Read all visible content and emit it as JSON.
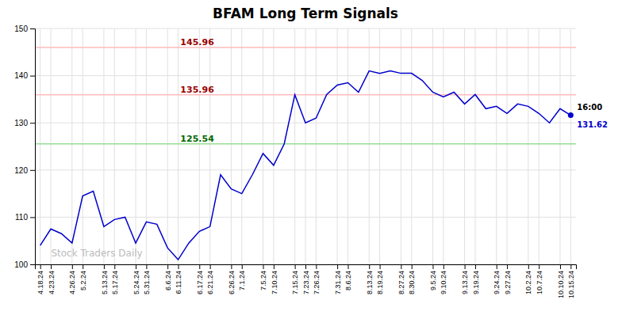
{
  "chart_data": {
    "type": "line",
    "title": "BFAM Long Term Signals",
    "categories": [
      "4.18.24",
      "4.23.24",
      null,
      "4.26.24",
      "5.2.24",
      null,
      "5.13.24",
      "5.17.24",
      null,
      "5.24.24",
      "5.31.24",
      null,
      "6.6.24",
      "6.11.24",
      null,
      "6.17.24",
      "6.21.24",
      null,
      "6.26.24",
      "7.1.24",
      null,
      "7.5.24",
      "7.10.24",
      null,
      "7.15.24",
      "7.23.24",
      "7.26.24",
      null,
      "7.31.24",
      "8.6.24",
      null,
      "8.13.24",
      "8.19.24",
      null,
      "8.27.24",
      "8.30.24",
      null,
      "9.5.24",
      "9.10.24",
      null,
      "9.13.24",
      "9.19.24",
      null,
      "9.24.24",
      "9.27.24",
      null,
      "10.2.24",
      "10.7.24",
      null,
      "10.10.24",
      "10.15.24"
    ],
    "values": [
      104.0,
      107.5,
      106.5,
      104.5,
      114.5,
      115.5,
      108.0,
      109.5,
      110.0,
      104.5,
      109.0,
      108.5,
      103.5,
      101.0,
      104.5,
      107.0,
      108.0,
      119.0,
      116.0,
      115.0,
      119.0,
      123.5,
      121.0,
      125.54,
      135.96,
      130.0,
      131.0,
      136.0,
      138.0,
      138.5,
      136.5,
      141.0,
      140.5,
      141.0,
      140.5,
      140.5,
      139.0,
      136.5,
      135.5,
      136.5,
      134.0,
      136.0,
      133.0,
      133.5,
      132.0,
      134.0,
      133.5,
      132.0,
      130.0,
      133.0,
      131.62
    ],
    "color": "#0000CC",
    "ylim": [
      100,
      150
    ],
    "yticks": [
      100,
      110,
      120,
      130,
      140,
      150
    ],
    "grid": true,
    "reference_lines": [
      {
        "value": 145.96,
        "color": "#ffbbbb",
        "label_color": "#990000"
      },
      {
        "value": 135.96,
        "color": "#ffbbbb",
        "label_color": "#990000"
      },
      {
        "value": 125.54,
        "color": "#99dd99",
        "label_color": "#006600"
      }
    ],
    "annotations": [
      "16:00",
      "Stock Traders Daily"
    ]
  }
}
